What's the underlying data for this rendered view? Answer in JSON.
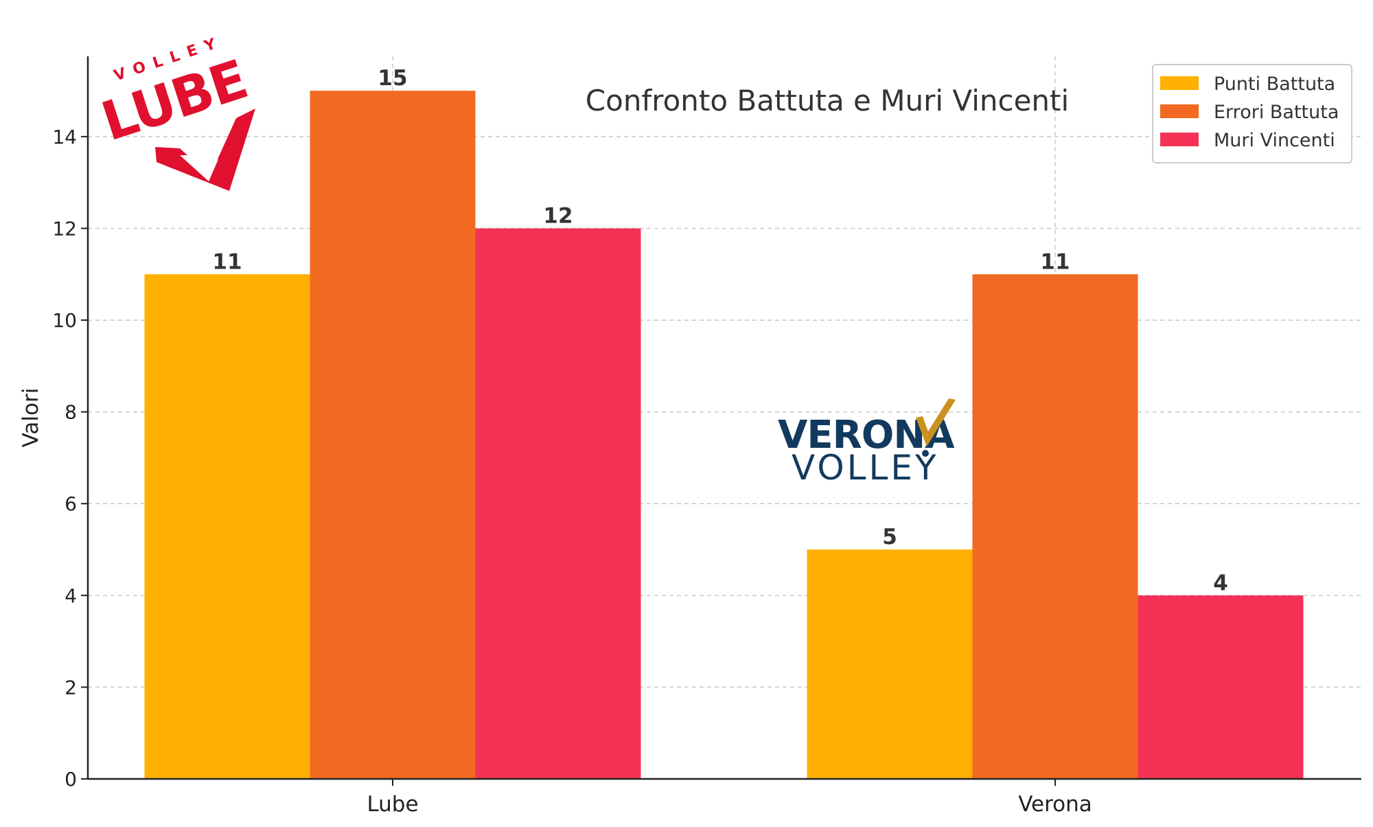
{
  "chart_data": {
    "type": "bar",
    "title": "Confronto Battuta e Muri Vincenti",
    "xlabel": "",
    "ylabel": "Valori",
    "categories": [
      "Lube",
      "Verona"
    ],
    "series": [
      {
        "name": "Punti Battuta",
        "values": [
          11,
          5
        ],
        "color": "#FFB000"
      },
      {
        "name": "Errori Battuta",
        "values": [
          15,
          11
        ],
        "color": "#F26A21"
      },
      {
        "name": "Muri Vincenti",
        "values": [
          12,
          4
        ],
        "color": "#F53255"
      }
    ],
    "ylim": [
      0,
      15.75
    ],
    "yticks": [
      0,
      2,
      4,
      6,
      8,
      10,
      12,
      14
    ],
    "grid": true,
    "legend_position": "top-right"
  },
  "logos": {
    "lube": {
      "top_text": "VOLLEY",
      "main_text": "LUBE",
      "color": "#E0102E"
    },
    "verona": {
      "line1": "VERONA",
      "line2": "VOLLEY",
      "color": "#123A5E",
      "accent": "#C9921E"
    }
  }
}
